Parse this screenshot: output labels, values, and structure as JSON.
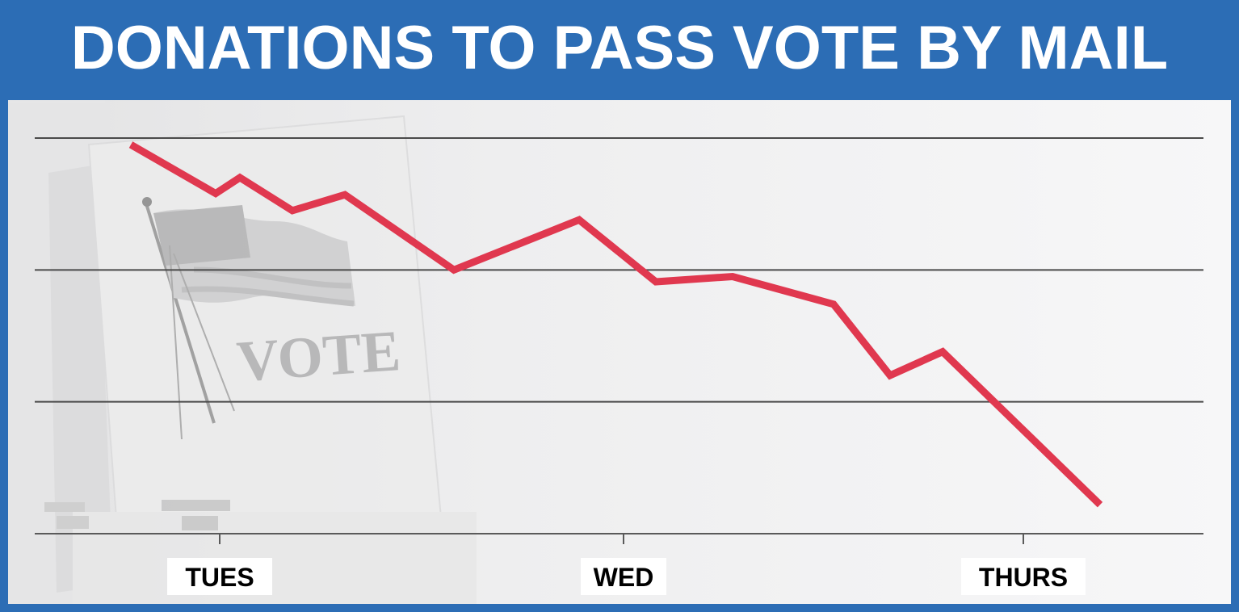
{
  "header": {
    "title": "DONATIONS TO PASS VOTE BY MAIL"
  },
  "background": {
    "box_text": "VOTE"
  },
  "colors": {
    "frame": "#2c6db5",
    "line": "#e0384f",
    "grid": "#444444"
  },
  "chart_data": {
    "type": "line",
    "title": "DONATIONS TO PASS VOTE BY MAIL",
    "xlabel": "",
    "ylabel": "",
    "x_ticks": [
      "TUES",
      "WED",
      "THURS"
    ],
    "x_tick_positions": [
      0.0,
      1.0,
      2.0
    ],
    "xlim": [
      -0.23,
      2.45
    ],
    "ylim": [
      0,
      3
    ],
    "grid": true,
    "legend": "none",
    "series": [
      {
        "x": [
          -0.22,
          -0.01,
          0.05,
          0.18,
          0.31,
          0.58,
          0.89,
          1.08,
          1.27,
          1.52,
          1.66,
          1.79,
          2.18
        ],
        "values": [
          2.95,
          2.58,
          2.7,
          2.45,
          2.57,
          2.0,
          2.38,
          1.91,
          1.95,
          1.74,
          1.2,
          1.38,
          0.22
        ]
      }
    ]
  }
}
